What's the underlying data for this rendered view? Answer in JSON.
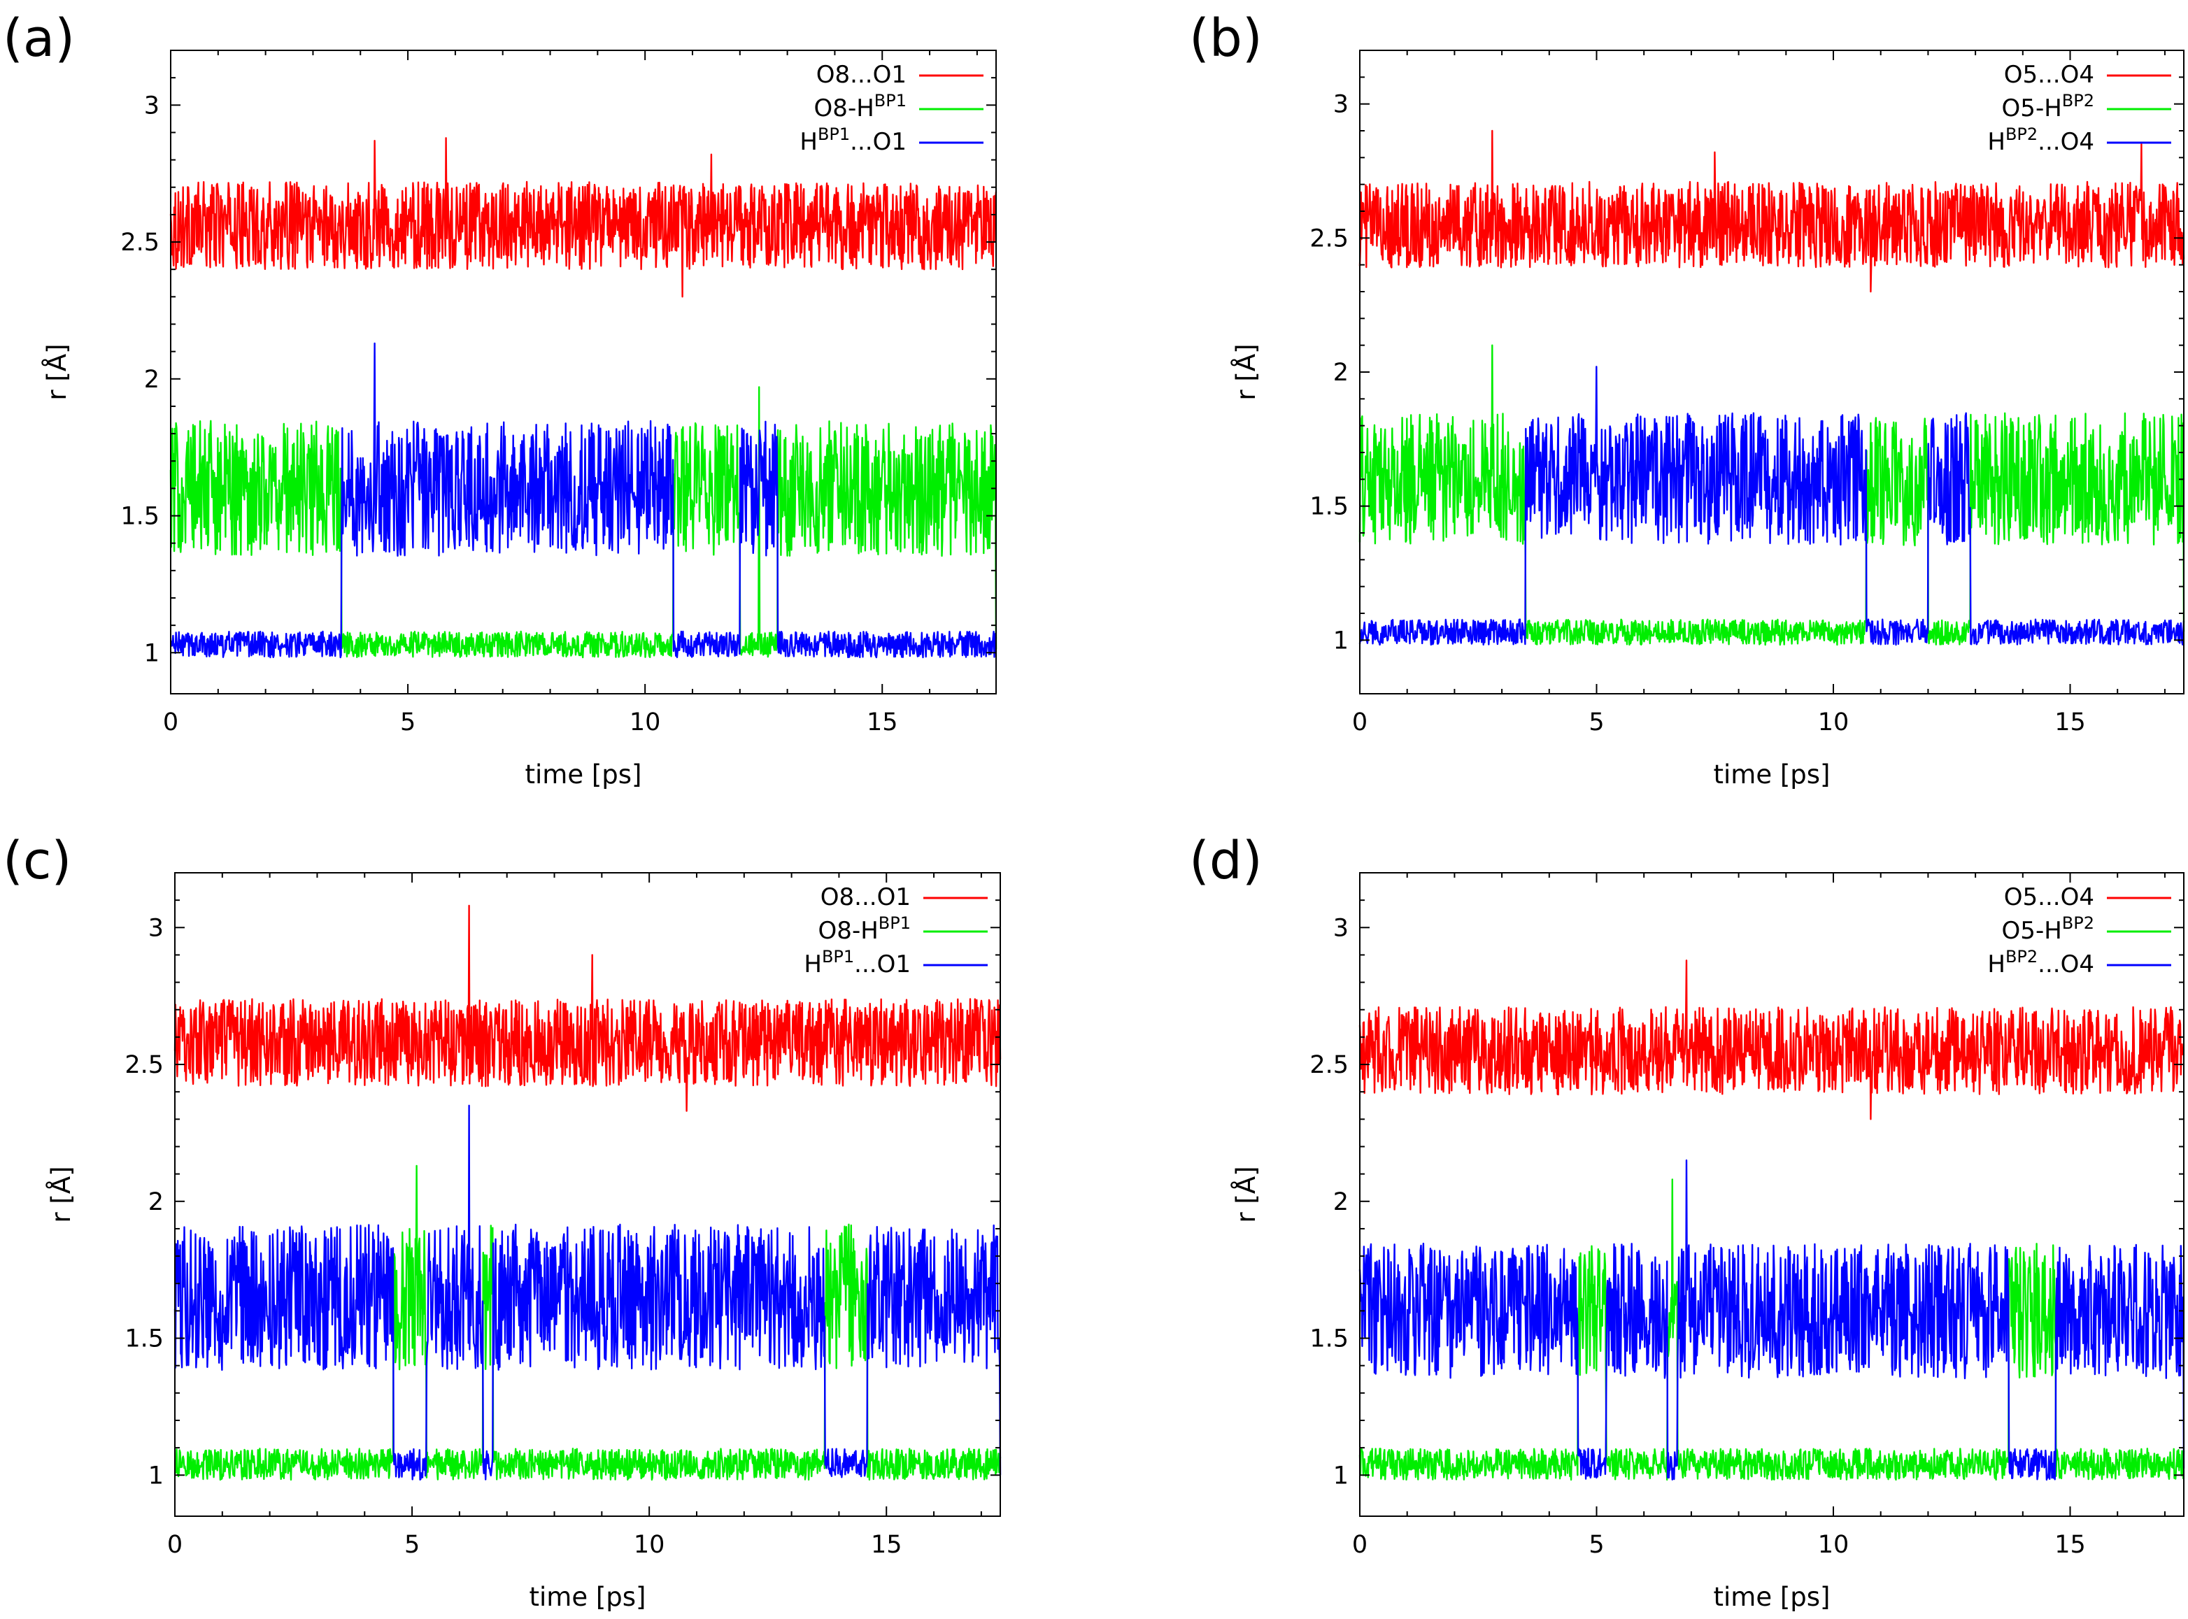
{
  "figure": {
    "colors": {
      "red": "#ff0000",
      "green": "#00ee00",
      "blue": "#0000ff"
    }
  },
  "chart_data": [
    {
      "panel": "(a)",
      "type": "line",
      "xlabel": "time [ps]",
      "ylabel": "r [Å]",
      "xlim": [
        0,
        17.4
      ],
      "ylim": [
        0.85,
        3.2
      ],
      "xticks": [
        "0",
        "5",
        "10",
        "15"
      ],
      "yticks": [
        "1",
        "1.5",
        "2",
        "2.5",
        "3"
      ],
      "legend_position": "top-right",
      "series": [
        {
          "name": "O8...O1",
          "legend": {
            "prefix": "O8...O1",
            "sup": "",
            "suffix": ""
          },
          "color": "#ff0000",
          "baseline": 2.56,
          "noise": 0.1,
          "peaks": [
            [
              4.3,
              2.87
            ],
            [
              5.8,
              2.88
            ],
            [
              11.4,
              2.82
            ]
          ],
          "low_value": 2.3
        },
        {
          "name": "O8-H(BP1)",
          "legend": {
            "prefix": "O8-H",
            "sup": "BP1",
            "suffix": ""
          },
          "color": "#00ee00",
          "high_mean": 1.6,
          "low_mean": 1.03,
          "high_noise": 0.13,
          "low_noise": 0.025,
          "high_intervals": [
            [
              0,
              3.6
            ],
            [
              10.6,
              12.0
            ],
            [
              12.8,
              17.4
            ]
          ],
          "spike": [
            12.4,
            1.97
          ]
        },
        {
          "name": "H(BP1)...O1",
          "legend": {
            "prefix": "H",
            "sup": "BP1",
            "suffix": "...O1"
          },
          "color": "#0000ff",
          "high_mean": 1.6,
          "low_mean": 1.03,
          "high_noise": 0.13,
          "low_noise": 0.025,
          "high_intervals": [
            [
              3.6,
              10.6
            ],
            [
              12.0,
              12.8
            ]
          ],
          "spike": [
            4.3,
            2.13
          ]
        }
      ]
    },
    {
      "panel": "(b)",
      "type": "line",
      "xlabel": "time [ps]",
      "ylabel": "r [Å]",
      "xlim": [
        0,
        17.4
      ],
      "ylim": [
        0.8,
        3.2
      ],
      "xticks": [
        "0",
        "5",
        "10",
        "15"
      ],
      "yticks": [
        "1",
        "1.5",
        "2",
        "2.5",
        "3"
      ],
      "legend_position": "top-right",
      "series": [
        {
          "name": "O5...O4",
          "legend": {
            "prefix": "O5...O4",
            "sup": "",
            "suffix": ""
          },
          "color": "#ff0000",
          "baseline": 2.55,
          "noise": 0.1,
          "peaks": [
            [
              2.8,
              2.9
            ],
            [
              7.5,
              2.82
            ],
            [
              16.5,
              2.85
            ]
          ],
          "low_value": 2.3
        },
        {
          "name": "O5-H(BP2)",
          "legend": {
            "prefix": "O5-H",
            "sup": "BP2",
            "suffix": ""
          },
          "color": "#00ee00",
          "high_mean": 1.6,
          "low_mean": 1.03,
          "high_noise": 0.13,
          "low_noise": 0.025,
          "high_intervals": [
            [
              0,
              3.5
            ],
            [
              10.7,
              12.0
            ],
            [
              12.9,
              17.4
            ]
          ],
          "spike": [
            2.8,
            2.1
          ]
        },
        {
          "name": "H(BP2)...O4",
          "legend": {
            "prefix": "H",
            "sup": "BP2",
            "suffix": "...O4"
          },
          "color": "#0000ff",
          "high_mean": 1.6,
          "low_mean": 1.03,
          "high_noise": 0.13,
          "low_noise": 0.025,
          "high_intervals": [
            [
              3.5,
              10.7
            ],
            [
              12.0,
              12.9
            ]
          ],
          "spike": [
            5.0,
            2.02
          ]
        }
      ]
    },
    {
      "panel": "(c)",
      "type": "line",
      "xlabel": "time [ps]",
      "ylabel": "r [Å]",
      "xlim": [
        0,
        17.4
      ],
      "ylim": [
        0.85,
        3.2
      ],
      "xticks": [
        "0",
        "5",
        "10",
        "15"
      ],
      "yticks": [
        "1",
        "1.5",
        "2",
        "2.5",
        "3"
      ],
      "legend_position": "top-right",
      "series": [
        {
          "name": "O8...O1",
          "legend": {
            "prefix": "O8...O1",
            "sup": "",
            "suffix": ""
          },
          "color": "#ff0000",
          "baseline": 2.58,
          "noise": 0.1,
          "peaks": [
            [
              6.2,
              3.08
            ],
            [
              8.8,
              2.9
            ]
          ],
          "low_value": 2.33
        },
        {
          "name": "O8-H(BP1)",
          "legend": {
            "prefix": "O8-H",
            "sup": "BP1",
            "suffix": ""
          },
          "color": "#00ee00",
          "high_mean": 1.65,
          "low_mean": 1.04,
          "high_noise": 0.14,
          "low_noise": 0.03,
          "high_intervals": [
            [
              4.6,
              5.3
            ],
            [
              6.5,
              6.7
            ],
            [
              13.7,
              14.6
            ]
          ],
          "spike": [
            5.1,
            2.13
          ]
        },
        {
          "name": "H(BP1)...O1",
          "legend": {
            "prefix": "H",
            "sup": "BP1",
            "suffix": "...O1"
          },
          "color": "#0000ff",
          "high_mean": 1.65,
          "low_mean": 1.04,
          "high_noise": 0.14,
          "low_noise": 0.03,
          "high_intervals": [
            [
              0,
              4.6
            ],
            [
              5.3,
              6.5
            ],
            [
              6.7,
              13.7
            ],
            [
              14.6,
              17.4
            ]
          ],
          "spike": [
            6.2,
            2.35
          ]
        }
      ]
    },
    {
      "panel": "(d)",
      "type": "line",
      "xlabel": "time [ps]",
      "ylabel": "r [Å]",
      "xlim": [
        0,
        17.4
      ],
      "ylim": [
        0.85,
        3.2
      ],
      "xticks": [
        "0",
        "5",
        "10",
        "15"
      ],
      "yticks": [
        "1",
        "1.5",
        "2",
        "2.5",
        "3"
      ],
      "legend_position": "top-right",
      "series": [
        {
          "name": "O5...O4",
          "legend": {
            "prefix": "O5...O4",
            "sup": "",
            "suffix": ""
          },
          "color": "#ff0000",
          "baseline": 2.55,
          "noise": 0.1,
          "peaks": [
            [
              6.9,
              2.88
            ]
          ],
          "low_value": 2.3
        },
        {
          "name": "O5-H(BP2)",
          "legend": {
            "prefix": "O5-H",
            "sup": "BP2",
            "suffix": ""
          },
          "color": "#00ee00",
          "high_mean": 1.6,
          "low_mean": 1.04,
          "high_noise": 0.13,
          "low_noise": 0.03,
          "high_intervals": [
            [
              4.6,
              5.2
            ],
            [
              6.5,
              6.7
            ],
            [
              13.7,
              14.7
            ]
          ],
          "spike": [
            6.6,
            2.08
          ]
        },
        {
          "name": "H(BP2)...O4",
          "legend": {
            "prefix": "H",
            "sup": "BP2",
            "suffix": "...O4"
          },
          "color": "#0000ff",
          "high_mean": 1.6,
          "low_mean": 1.04,
          "high_noise": 0.13,
          "low_noise": 0.03,
          "high_intervals": [
            [
              0,
              4.6
            ],
            [
              5.2,
              6.5
            ],
            [
              6.7,
              13.7
            ],
            [
              14.7,
              17.4
            ]
          ],
          "spike": [
            6.9,
            2.15
          ]
        }
      ]
    }
  ]
}
